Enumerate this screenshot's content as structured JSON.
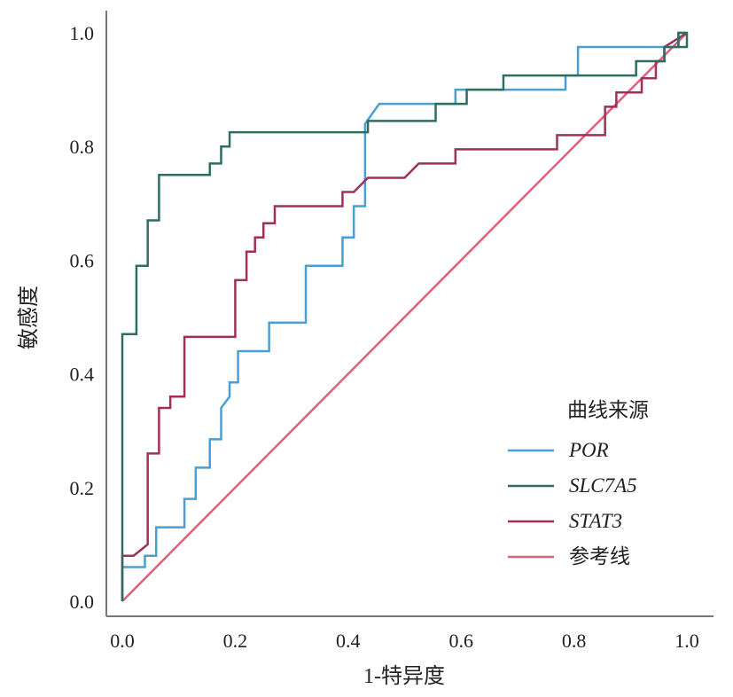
{
  "chart_data": {
    "type": "line",
    "title": "",
    "xlabel": "1-特异度",
    "ylabel": "敏感度",
    "xlim": [
      0,
      1
    ],
    "ylim": [
      0,
      1
    ],
    "xticks": [
      "0.0",
      "0.2",
      "0.4",
      "0.6",
      "0.8",
      "1.0"
    ],
    "yticks": [
      "0.0",
      "0.2",
      "0.4",
      "0.6",
      "0.8",
      "1.0"
    ],
    "grid": false,
    "legend": {
      "title": "曲线来源",
      "placement": "bottom-right"
    },
    "series": [
      {
        "name": "POR",
        "italic": true,
        "color": "#4a9fd0",
        "points": [
          [
            0,
            0
          ],
          [
            0,
            0.06
          ],
          [
            0.04,
            0.06
          ],
          [
            0.04,
            0.08
          ],
          [
            0.06,
            0.08
          ],
          [
            0.06,
            0.13
          ],
          [
            0.11,
            0.13
          ],
          [
            0.11,
            0.18
          ],
          [
            0.13,
            0.18
          ],
          [
            0.13,
            0.235
          ],
          [
            0.155,
            0.235
          ],
          [
            0.155,
            0.285
          ],
          [
            0.175,
            0.285
          ],
          [
            0.175,
            0.34
          ],
          [
            0.19,
            0.36
          ],
          [
            0.19,
            0.385
          ],
          [
            0.205,
            0.385
          ],
          [
            0.205,
            0.44
          ],
          [
            0.26,
            0.44
          ],
          [
            0.26,
            0.49
          ],
          [
            0.325,
            0.49
          ],
          [
            0.325,
            0.59
          ],
          [
            0.39,
            0.59
          ],
          [
            0.39,
            0.64
          ],
          [
            0.41,
            0.64
          ],
          [
            0.41,
            0.695
          ],
          [
            0.43,
            0.695
          ],
          [
            0.43,
            0.84
          ],
          [
            0.455,
            0.875
          ],
          [
            0.59,
            0.875
          ],
          [
            0.59,
            0.9
          ],
          [
            0.785,
            0.9
          ],
          [
            0.785,
            0.925
          ],
          [
            0.807,
            0.925
          ],
          [
            0.807,
            0.975
          ],
          [
            0.985,
            0.975
          ],
          [
            0.985,
            1
          ],
          [
            1,
            1
          ]
        ]
      },
      {
        "name": "SLC7A5",
        "italic": true,
        "color": "#2e6e62",
        "points": [
          [
            0,
            0
          ],
          [
            0,
            0.47
          ],
          [
            0.025,
            0.47
          ],
          [
            0.025,
            0.59
          ],
          [
            0.045,
            0.59
          ],
          [
            0.045,
            0.67
          ],
          [
            0.065,
            0.67
          ],
          [
            0.065,
            0.75
          ],
          [
            0.155,
            0.75
          ],
          [
            0.155,
            0.77
          ],
          [
            0.175,
            0.77
          ],
          [
            0.175,
            0.8
          ],
          [
            0.19,
            0.8
          ],
          [
            0.19,
            0.825
          ],
          [
            0.435,
            0.825
          ],
          [
            0.435,
            0.845
          ],
          [
            0.555,
            0.845
          ],
          [
            0.555,
            0.875
          ],
          [
            0.61,
            0.875
          ],
          [
            0.61,
            0.9
          ],
          [
            0.675,
            0.9
          ],
          [
            0.675,
            0.925
          ],
          [
            0.91,
            0.925
          ],
          [
            0.91,
            0.95
          ],
          [
            0.96,
            0.95
          ],
          [
            0.96,
            0.975
          ],
          [
            0.985,
            0.975
          ],
          [
            0.985,
            1
          ],
          [
            1,
            1
          ],
          [
            1,
            0.975
          ],
          [
            0.985,
            0.975
          ]
        ]
      },
      {
        "name": "STAT3",
        "italic": true,
        "color": "#a0305a",
        "points": [
          [
            0,
            0
          ],
          [
            0,
            0.08
          ],
          [
            0.02,
            0.08
          ],
          [
            0.045,
            0.1
          ],
          [
            0.045,
            0.26
          ],
          [
            0.065,
            0.26
          ],
          [
            0.065,
            0.34
          ],
          [
            0.085,
            0.34
          ],
          [
            0.085,
            0.36
          ],
          [
            0.11,
            0.36
          ],
          [
            0.11,
            0.465
          ],
          [
            0.2,
            0.465
          ],
          [
            0.2,
            0.565
          ],
          [
            0.22,
            0.565
          ],
          [
            0.22,
            0.615
          ],
          [
            0.235,
            0.615
          ],
          [
            0.235,
            0.64
          ],
          [
            0.25,
            0.64
          ],
          [
            0.25,
            0.665
          ],
          [
            0.27,
            0.665
          ],
          [
            0.27,
            0.695
          ],
          [
            0.39,
            0.695
          ],
          [
            0.39,
            0.72
          ],
          [
            0.41,
            0.72
          ],
          [
            0.435,
            0.745
          ],
          [
            0.5,
            0.745
          ],
          [
            0.525,
            0.77
          ],
          [
            0.59,
            0.77
          ],
          [
            0.59,
            0.795
          ],
          [
            0.77,
            0.795
          ],
          [
            0.77,
            0.82
          ],
          [
            0.855,
            0.82
          ],
          [
            0.855,
            0.87
          ],
          [
            0.875,
            0.87
          ],
          [
            0.875,
            0.895
          ],
          [
            0.92,
            0.895
          ],
          [
            0.92,
            0.92
          ],
          [
            0.945,
            0.92
          ],
          [
            0.945,
            0.95
          ],
          [
            0.96,
            0.95
          ],
          [
            0.96,
            0.975
          ],
          [
            1,
            1
          ]
        ]
      },
      {
        "name": "参考线",
        "italic": false,
        "color": "#e0607a",
        "points": [
          [
            0,
            0
          ],
          [
            1,
            1
          ]
        ]
      }
    ]
  }
}
